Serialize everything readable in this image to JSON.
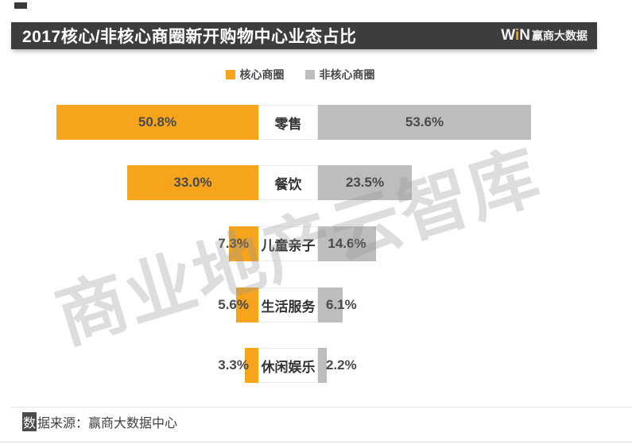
{
  "header": {
    "title": "2017核心/非核心商圈新开购物中心业态占比",
    "logo_w": "W",
    "logo_i": "i",
    "logo_n": "N",
    "logo_brand": "赢商大数据"
  },
  "legend": {
    "core": "核心商圈",
    "noncore": "非核心商圈"
  },
  "watermark": "商业地产云智库",
  "footer": {
    "text": "数据来源：赢商大数据中心"
  },
  "colors": {
    "core": "#F7A41D",
    "noncore": "#BDBDBD",
    "header_bg": "#3D3D3D"
  },
  "chart_data": {
    "type": "bar",
    "orientation": "butterfly-horizontal",
    "title": "2017核心/非核心商圈新开购物中心业态占比",
    "unit": "%",
    "xlim": [
      0,
      55
    ],
    "legend_position": "top-center",
    "grid": false,
    "categories": [
      "零售",
      "餐饮",
      "儿童亲子",
      "生活服务",
      "休闲娱乐"
    ],
    "series": [
      {
        "name": "核心商圈",
        "color": "#F7A41D",
        "values": [
          50.8,
          33.0,
          7.3,
          5.6,
          3.3
        ]
      },
      {
        "name": "非核心商圈",
        "color": "#BDBDBD",
        "values": [
          53.6,
          23.5,
          14.6,
          6.1,
          2.2
        ]
      }
    ],
    "rows": [
      {
        "category": "零售",
        "core": 50.8,
        "core_label": "50.8%",
        "noncore": 53.6,
        "noncore_label": "53.6%"
      },
      {
        "category": "餐饮",
        "core": 33.0,
        "core_label": "33.0%",
        "noncore": 23.5,
        "noncore_label": "23.5%"
      },
      {
        "category": "儿童亲子",
        "core": 7.3,
        "core_label": "7.3%",
        "noncore": 14.6,
        "noncore_label": "14.6%"
      },
      {
        "category": "生活服务",
        "core": 5.6,
        "core_label": "5.6%",
        "noncore": 6.1,
        "noncore_label": "6.1%"
      },
      {
        "category": "休闲娱乐",
        "core": 3.3,
        "core_label": "3.3%",
        "noncore": 2.2,
        "noncore_label": "2.2%"
      }
    ],
    "source": "数据来源：赢商大数据中心"
  }
}
